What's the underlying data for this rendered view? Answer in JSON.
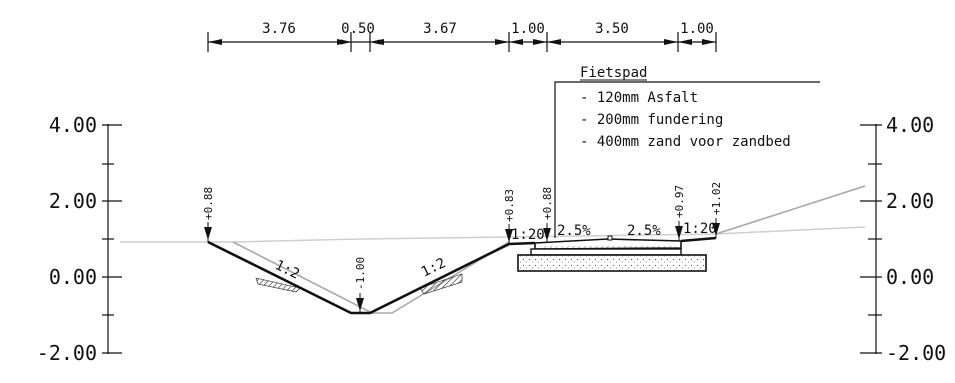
{
  "dimensions": [
    "3.76",
    "0.50",
    "3.67",
    "1.00",
    "3.50",
    "1.00"
  ],
  "axis_labels_left": [
    "4.00",
    "2.00",
    "0.00",
    "-2.00"
  ],
  "axis_labels_right": [
    "4.00",
    "2.00",
    "0.00",
    "-2.00"
  ],
  "elevations": [
    "+0.88",
    "-1.00",
    "+0.83",
    "+0.88",
    "+0.97",
    "+1.02"
  ],
  "slopes": {
    "left": "1:2",
    "right": "1:2",
    "ramp_left": "1:20",
    "ramp_right": "1:20",
    "cross_left": "2.5%",
    "cross_right": "2.5%"
  },
  "note": {
    "title": "Fietspad",
    "lines": [
      "- 120mm Asfalt",
      "- 200mm fundering",
      "- 400mm zand voor zandbed"
    ]
  },
  "colors": {
    "ink": "#111111",
    "existing_ground": "#a8a8a8",
    "ground_line": "#cfcfcf"
  }
}
